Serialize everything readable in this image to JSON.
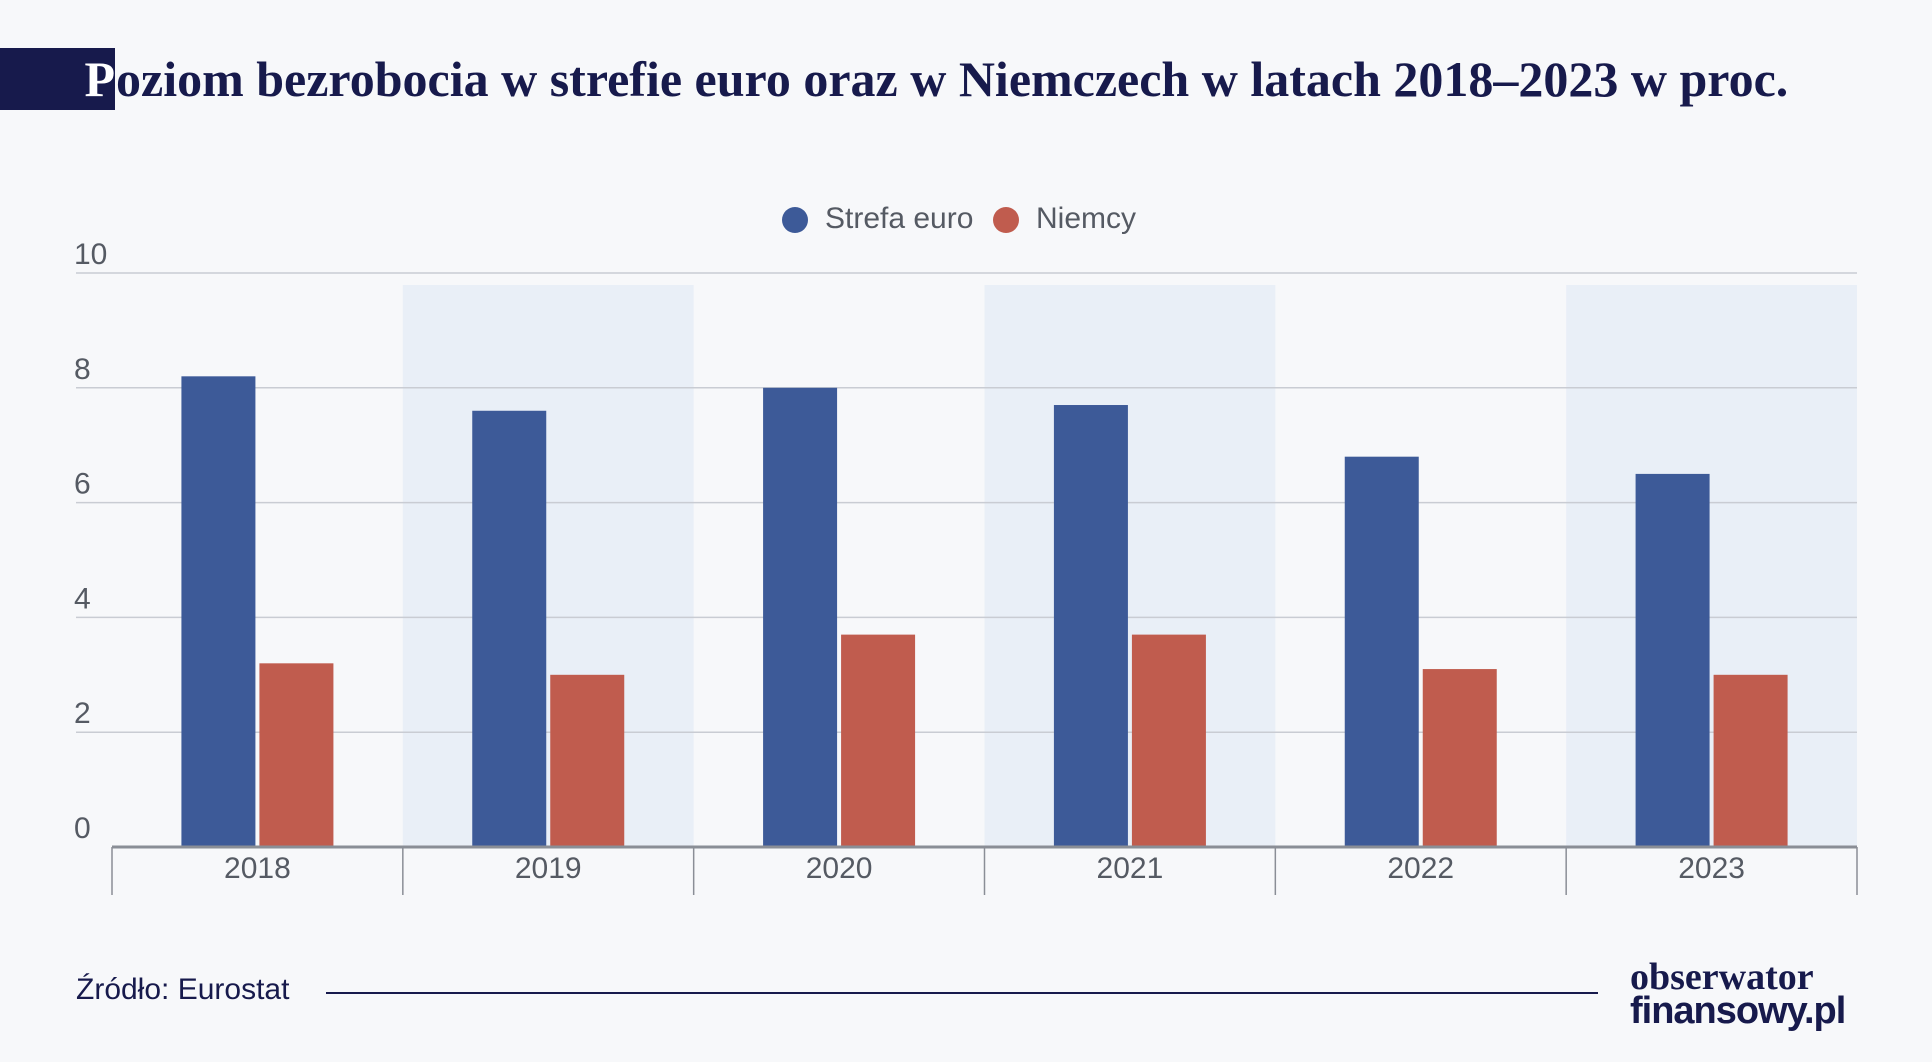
{
  "title": {
    "first_letter": "P",
    "rest": "oziom bezrobocia w strefie euro oraz w Niemczech w latach 2018–2023 w proc."
  },
  "colors": {
    "euro": "#3d5a98",
    "germany": "#c05c4e",
    "band": "#e9eff7",
    "grid": "#c9ccd3",
    "axis_text": "#555a63",
    "title_dark": "#171a4c"
  },
  "chart_data": {
    "type": "bar",
    "categories": [
      "2018",
      "2019",
      "2020",
      "2021",
      "2022",
      "2023"
    ],
    "series": [
      {
        "name": "Strefa euro",
        "values": [
          8.2,
          7.6,
          8.0,
          7.7,
          6.8,
          6.5
        ]
      },
      {
        "name": "Niemcy",
        "values": [
          3.2,
          3.0,
          3.7,
          3.7,
          3.1,
          3.0
        ]
      }
    ],
    "yticks": [
      "0",
      "2",
      "4",
      "6",
      "8",
      "10"
    ],
    "ylim": [
      0,
      10
    ],
    "legend_position": "top-center",
    "grid": true
  },
  "footer": {
    "source": "Źródło: Eurostat"
  },
  "logo": {
    "line1": "obserwator",
    "line2": "finansowy.pl"
  }
}
